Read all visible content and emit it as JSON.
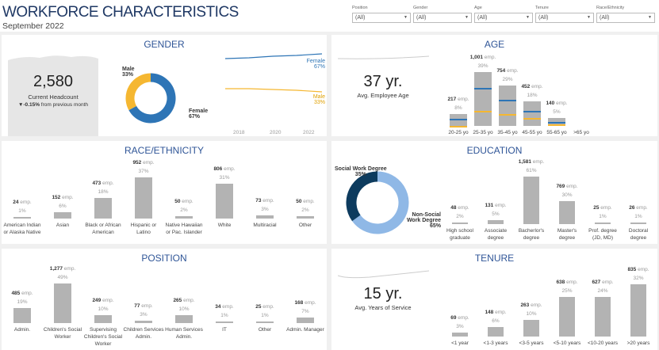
{
  "header": {
    "title": "WORKFORCE CHARACTERISTICS",
    "subtitle": "September 2022"
  },
  "filters": [
    {
      "label": "Position",
      "value": "(All)"
    },
    {
      "label": "Gender",
      "value": "(All)"
    },
    {
      "label": "Age",
      "value": "(All)"
    },
    {
      "label": "Tenure",
      "value": "(All)"
    },
    {
      "label": "Race/Ethnicity",
      "value": "(All)"
    }
  ],
  "gender": {
    "title": "GENDER",
    "headcount": "2,580",
    "headcount_label": "Current Headcount",
    "change": "▼-0.15%",
    "change_text": " from previous month",
    "donut": [
      {
        "name": "Male",
        "pct": "33%",
        "value": 33,
        "color": "#f5b731"
      },
      {
        "name": "Female",
        "pct": "67%",
        "value": 67,
        "color": "#2e75b6"
      }
    ],
    "trend": {
      "years": [
        "2018",
        "2020",
        "2022"
      ],
      "series": [
        {
          "name": "Female",
          "pct": "67%",
          "color": "#2e75b6"
        },
        {
          "name": "Male",
          "pct": "33%",
          "color": "#f5b731"
        }
      ]
    }
  },
  "age": {
    "title": "AGE",
    "avg": "37 yr.",
    "avg_label": "Avg. Employee Age",
    "unit": "emp.",
    "bars": [
      {
        "count": "217",
        "value": 217,
        "pct": "8%",
        "label": "20-25 yo"
      },
      {
        "count": "1,001",
        "value": 1001,
        "pct": "39%",
        "label": "25-35 yo"
      },
      {
        "count": "754",
        "value": 754,
        "pct": "29%",
        "label": "35-45 yo"
      },
      {
        "count": "452",
        "value": 452,
        "pct": "18%",
        "label": "45-55 yo"
      },
      {
        "count": "140",
        "value": 140,
        "pct": "5%",
        "label": "55-65 yo"
      },
      {
        "label": ">65 yo"
      }
    ]
  },
  "race": {
    "title": "RACE/ETHNICITY",
    "unit": "emp.",
    "bars": [
      {
        "count": "24",
        "value": 24,
        "pct": "1%",
        "label": "American Indian or Alaska Native"
      },
      {
        "count": "152",
        "value": 152,
        "pct": "6%",
        "label": "Asian"
      },
      {
        "count": "473",
        "value": 473,
        "pct": "18%",
        "label": "Black or African American"
      },
      {
        "count": "952",
        "value": 952,
        "pct": "37%",
        "label": "Hispanic or Latino"
      },
      {
        "count": "50",
        "value": 50,
        "pct": "2%",
        "label": "Native Hawaiian or Pac. Islander"
      },
      {
        "count": "806",
        "value": 806,
        "pct": "31%",
        "label": "White"
      },
      {
        "count": "73",
        "value": 73,
        "pct": "3%",
        "label": "Multiracial"
      },
      {
        "count": "50",
        "value": 50,
        "pct": "2%",
        "label": "Other"
      }
    ]
  },
  "education": {
    "title": "EDUCATION",
    "unit": "emp.",
    "donut": [
      {
        "name": "Social Work Degree",
        "pct": "35%",
        "value": 35,
        "color": "#0d3b5e"
      },
      {
        "name": "Non-Social Work Degree",
        "pct": "65%",
        "value": 65,
        "color": "#8fb8e6"
      }
    ],
    "bars": [
      {
        "count": "48",
        "value": 48,
        "pct": "2%",
        "label": "High school graduate"
      },
      {
        "count": "131",
        "value": 131,
        "pct": "5%",
        "label": "Associate degree"
      },
      {
        "count": "1,581",
        "value": 1581,
        "pct": "61%",
        "label": "Bacherlor's degree"
      },
      {
        "count": "769",
        "value": 769,
        "pct": "30%",
        "label": "Master's degree"
      },
      {
        "count": "25",
        "value": 25,
        "pct": "1%",
        "label": "Prof. degree (JD, MD)"
      },
      {
        "count": "26",
        "value": 26,
        "pct": "1%",
        "label": "Doctoral degree"
      }
    ]
  },
  "position": {
    "title": "POSITION",
    "unit": "emp.",
    "bars": [
      {
        "count": "485",
        "value": 485,
        "pct": "19%",
        "label": "Admin."
      },
      {
        "count": "1,277",
        "value": 1277,
        "pct": "49%",
        "label": "Children's Social Worker"
      },
      {
        "count": "249",
        "value": 249,
        "pct": "10%",
        "label": "Supervising Children's Social Worker"
      },
      {
        "count": "77",
        "value": 77,
        "pct": "3%",
        "label": "Children Services Admin."
      },
      {
        "count": "265",
        "value": 265,
        "pct": "10%",
        "label": "Human Services Admin."
      },
      {
        "count": "34",
        "value": 34,
        "pct": "1%",
        "label": "IT"
      },
      {
        "count": "25",
        "value": 25,
        "pct": "1%",
        "label": "Other"
      },
      {
        "count": "168",
        "value": 168,
        "pct": "7%",
        "label": "Admin. Manager"
      }
    ]
  },
  "tenure": {
    "title": "TENURE",
    "avg": "15 yr.",
    "avg_label": "Avg. Years of Service",
    "unit": "emp.",
    "bars": [
      {
        "count": "69",
        "value": 69,
        "pct": "3%",
        "label": "<1 year"
      },
      {
        "count": "148",
        "value": 148,
        "pct": "6%",
        "label": "<1-3 years"
      },
      {
        "count": "263",
        "value": 263,
        "pct": "10%",
        "label": "<3-5 years"
      },
      {
        "count": "638",
        "value": 638,
        "pct": "25%",
        "label": "<5-10 years"
      },
      {
        "count": "627",
        "value": 627,
        "pct": "24%",
        "label": "<10-20 years"
      },
      {
        "count": "835",
        "value": 835,
        "pct": "32%",
        "label": ">20 years"
      }
    ]
  }
}
